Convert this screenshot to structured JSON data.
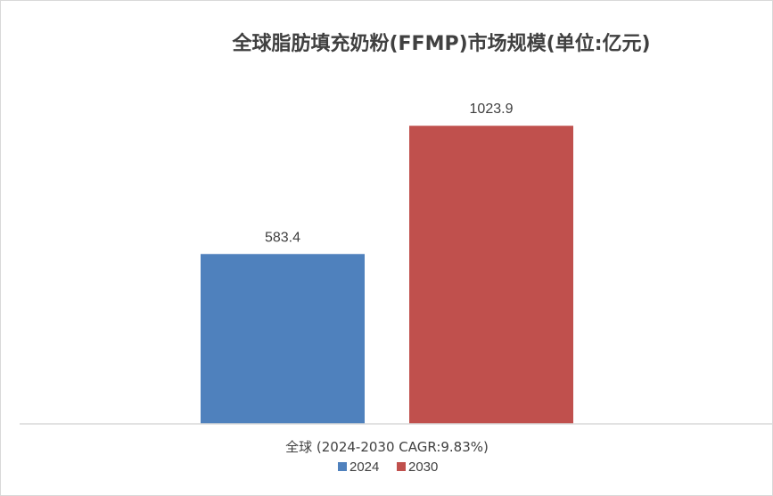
{
  "chart_data": {
    "type": "bar",
    "title": "全球脂肪填充奶粉(FFMP)市场规模(单位:亿元)",
    "categories": [
      "全球 (2024-2030 CAGR:9.83%)"
    ],
    "series": [
      {
        "name": "2024",
        "values": [
          583.4
        ],
        "color": "#4f81bd"
      },
      {
        "name": "2030",
        "values": [
          1023.9
        ],
        "color": "#c0504d"
      }
    ],
    "data_labels": [
      "583.4",
      "1023.9"
    ],
    "ylim": [
      0,
      1150
    ],
    "grid": false,
    "legend_position": "bottom",
    "axis_color": "#d9d9d9"
  }
}
